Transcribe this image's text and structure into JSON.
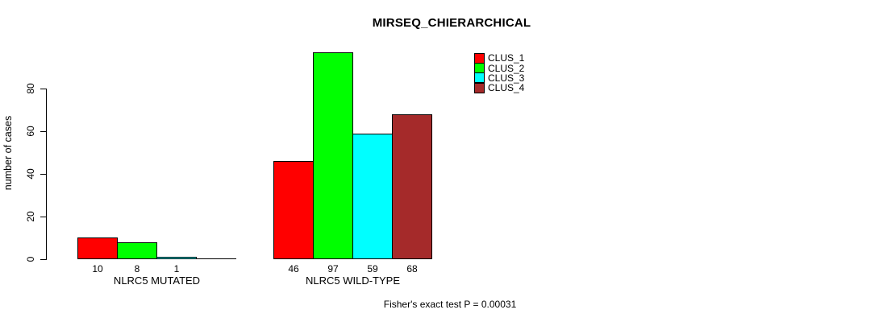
{
  "title": "MIRSEQ_CHIERARCHICAL",
  "footer": "Fisher's exact test P = 0.00031",
  "legend": {
    "items": [
      {
        "label": "CLUS_1",
        "color": "#FF0000"
      },
      {
        "label": "CLUS_2",
        "color": "#00FF00"
      },
      {
        "label": "CLUS_3",
        "color": "#00FFFF"
      },
      {
        "label": "CLUS_4",
        "color": "#A52A2A"
      }
    ]
  },
  "chart_data": {
    "type": "bar",
    "title": "MIRSEQ_CHIERARCHICAL",
    "xlabel": "",
    "ylabel": "number of cases",
    "ylim": [
      0,
      80
    ],
    "yticks": [
      0,
      20,
      40,
      60,
      80
    ],
    "grid": false,
    "legend_position": "top-right",
    "categories": [
      "NLRC5 MUTATED",
      "NLRC5 WILD-TYPE"
    ],
    "series": [
      {
        "name": "CLUS_1",
        "color": "#FF0000",
        "values": [
          10,
          46
        ]
      },
      {
        "name": "CLUS_2",
        "color": "#00FF00",
        "values": [
          8,
          97
        ]
      },
      {
        "name": "CLUS_3",
        "color": "#00FFFF",
        "values": [
          1,
          59
        ]
      },
      {
        "name": "CLUS_4",
        "color": "#A52A2A",
        "values": [
          0,
          68
        ]
      }
    ],
    "bar_labels": [
      [
        "10",
        "8",
        "1",
        ""
      ],
      [
        "46",
        "97",
        "59",
        "68"
      ]
    ],
    "annotation": "Fisher's exact test P = 0.00031"
  }
}
